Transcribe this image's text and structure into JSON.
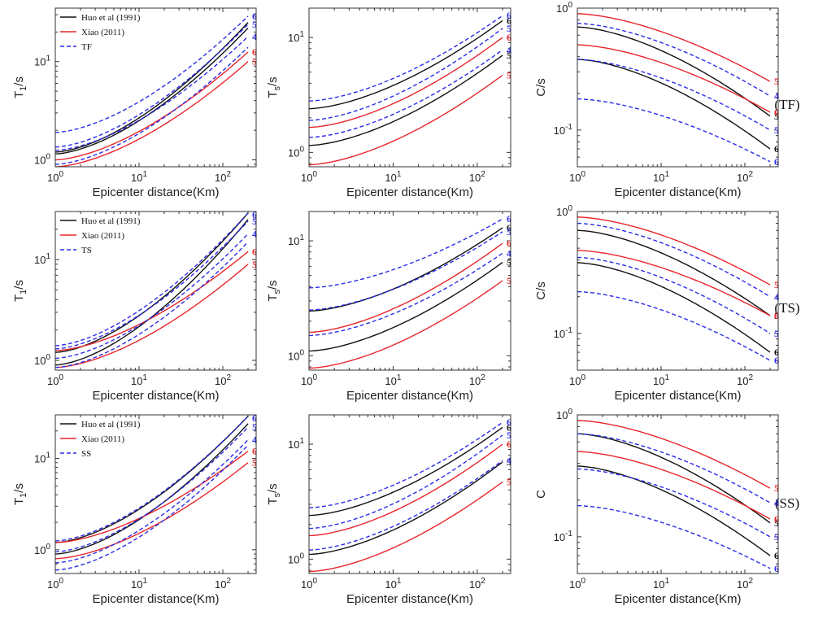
{
  "colors": {
    "black": "#111111",
    "red": "#e8262b",
    "blue": "#2b2bea"
  },
  "row_labels": [
    "(TF)",
    "(TS)",
    "(SS)"
  ],
  "chart_data": [
    {
      "type": "line",
      "row": 0,
      "col": 0,
      "xlabel": "Epicenter distance(Km)",
      "ylabel": "T",
      "ylabel_sub": "1",
      "ylabel_suffix": "/s",
      "xlim": [
        1,
        250
      ],
      "ylim": [
        0.85,
        35
      ],
      "xticks": [
        {
          "v": 1,
          "e": "0"
        },
        {
          "v": 10,
          "e": "1"
        },
        {
          "v": 100,
          "e": "2"
        }
      ],
      "yticks": [
        {
          "v": 1,
          "e": "0"
        },
        {
          "v": 10,
          "e": "1"
        }
      ],
      "legend": [
        "Huo et al (1991)",
        "Xiao (2011)",
        "TF"
      ],
      "series": [
        {
          "style": "black",
          "y0": 1.2,
          "y200": 25,
          "label": ""
        },
        {
          "style": "black",
          "y0": 1.15,
          "y200": 22,
          "label": ""
        },
        {
          "style": "red",
          "y0": 1.0,
          "y200": 12.5,
          "label": "6"
        },
        {
          "style": "red",
          "y0": 0.85,
          "y200": 10,
          "label": "5"
        },
        {
          "style": "blue",
          "y0": 1.9,
          "y200": 29,
          "label": "6"
        },
        {
          "style": "blue",
          "y0": 1.35,
          "y200": 24,
          "label": "5"
        },
        {
          "style": "blue",
          "y0": 1.25,
          "y200": 18,
          "label": "4"
        },
        {
          "style": "blue",
          "y0": 0.9,
          "y200": 14,
          "label": ""
        }
      ]
    },
    {
      "type": "line",
      "row": 0,
      "col": 1,
      "xlabel": "Epicenter distance(Km)",
      "ylabel": "T",
      "ylabel_sub": "s",
      "ylabel_suffix": "/s",
      "xlim": [
        1,
        250
      ],
      "ylim": [
        0.75,
        18
      ],
      "xticks": [
        {
          "v": 1,
          "e": "0"
        },
        {
          "v": 10,
          "e": "1"
        },
        {
          "v": 100,
          "e": "2"
        }
      ],
      "yticks": [
        {
          "v": 1,
          "e": "0"
        },
        {
          "v": 10,
          "e": "1"
        }
      ],
      "legend": [],
      "series": [
        {
          "style": "black",
          "y0": 2.4,
          "y200": 14,
          "label": "6"
        },
        {
          "style": "black",
          "y0": 1.15,
          "y200": 7,
          "label": "5"
        },
        {
          "style": "red",
          "y0": 1.65,
          "y200": 10,
          "label": "6"
        },
        {
          "style": "red",
          "y0": 0.78,
          "y200": 4.7,
          "label": "5"
        },
        {
          "style": "blue",
          "y0": 2.8,
          "y200": 15.5,
          "label": "6"
        },
        {
          "style": "blue",
          "y0": 1.9,
          "y200": 12,
          "label": "5"
        },
        {
          "style": "blue",
          "y0": 1.35,
          "y200": 7.8,
          "label": "4"
        }
      ]
    },
    {
      "type": "line",
      "row": 0,
      "col": 2,
      "xlabel": "Epicenter distance(Km)",
      "ylabel": "C/s",
      "ylabel_sub": "",
      "ylabel_suffix": "",
      "xlim": [
        1,
        250
      ],
      "ylim": [
        0.05,
        1
      ],
      "xticks": [
        {
          "v": 1,
          "e": "0"
        },
        {
          "v": 10,
          "e": "1"
        },
        {
          "v": 100,
          "e": "2"
        }
      ],
      "yticks": [
        {
          "v": 0.1,
          "e": "-1"
        },
        {
          "v": 1,
          "e": "0"
        }
      ],
      "legend": [],
      "series": [
        {
          "style": "black",
          "y0": 0.7,
          "y200": 0.13,
          "label": "5"
        },
        {
          "style": "black",
          "y0": 0.38,
          "y200": 0.07,
          "label": "6"
        },
        {
          "style": "red",
          "y0": 0.9,
          "y200": 0.25,
          "label": "5"
        },
        {
          "style": "red",
          "y0": 0.5,
          "y200": 0.14,
          "label": "6"
        },
        {
          "style": "blue",
          "y0": 0.75,
          "y200": 0.19,
          "label": "4"
        },
        {
          "style": "blue",
          "y0": 0.38,
          "y200": 0.1,
          "label": "5"
        },
        {
          "style": "blue",
          "y0": 0.18,
          "y200": 0.055,
          "label": "6"
        }
      ]
    },
    {
      "type": "line",
      "row": 1,
      "col": 0,
      "xlabel": "Epicenter distance(Km)",
      "ylabel": "T",
      "ylabel_sub": "1",
      "ylabel_suffix": "/s",
      "xlim": [
        1,
        250
      ],
      "ylim": [
        0.8,
        30
      ],
      "xticks": [
        {
          "v": 1,
          "e": "0"
        },
        {
          "v": 10,
          "e": "1"
        },
        {
          "v": 100,
          "e": "2"
        }
      ],
      "yticks": [
        {
          "v": 1,
          "e": "0"
        },
        {
          "v": 10,
          "e": "1"
        }
      ],
      "legend": [
        "Huo et al (1991)",
        "Xiao (2011)",
        "TS"
      ],
      "series": [
        {
          "style": "black",
          "y0": 1.2,
          "y200": 29,
          "label": ""
        },
        {
          "style": "black",
          "y0": 0.9,
          "y200": 25,
          "label": ""
        },
        {
          "style": "red",
          "y0": 1.25,
          "y200": 12,
          "label": "6"
        },
        {
          "style": "red",
          "y0": 0.85,
          "y200": 9,
          "label": "5"
        },
        {
          "style": "blue",
          "y0": 1.4,
          "y200": 29,
          "label": "6"
        },
        {
          "style": "blue",
          "y0": 1.3,
          "y200": 24,
          "label": "5"
        },
        {
          "style": "blue",
          "y0": 1.05,
          "y200": 18,
          "label": "4"
        },
        {
          "style": "blue",
          "y0": 0.85,
          "y200": 15,
          "label": ""
        }
      ]
    },
    {
      "type": "line",
      "row": 1,
      "col": 1,
      "xlabel": "Epicenter distance(Km)",
      "ylabel": "T",
      "ylabel_sub": "s",
      "ylabel_suffix": "/s",
      "xlim": [
        1,
        250
      ],
      "ylim": [
        0.75,
        18
      ],
      "xticks": [
        {
          "v": 1,
          "e": "0"
        },
        {
          "v": 10,
          "e": "1"
        },
        {
          "v": 100,
          "e": "2"
        }
      ],
      "yticks": [
        {
          "v": 1,
          "e": "0"
        },
        {
          "v": 10,
          "e": "1"
        }
      ],
      "legend": [],
      "series": [
        {
          "style": "black",
          "y0": 2.45,
          "y200": 13,
          "label": "6"
        },
        {
          "style": "black",
          "y0": 1.1,
          "y200": 6.5,
          "label": "5"
        },
        {
          "style": "red",
          "y0": 1.6,
          "y200": 9.5,
          "label": "6"
        },
        {
          "style": "red",
          "y0": 0.78,
          "y200": 4.5,
          "label": "5"
        },
        {
          "style": "blue",
          "y0": 3.9,
          "y200": 15.5,
          "label": "6"
        },
        {
          "style": "blue",
          "y0": 2.5,
          "y200": 12,
          "label": "5"
        },
        {
          "style": "blue",
          "y0": 1.5,
          "y200": 7.8,
          "label": "4"
        }
      ]
    },
    {
      "type": "line",
      "row": 1,
      "col": 2,
      "xlabel": "Epicenter distance(Km)",
      "ylabel": "C/s",
      "ylabel_sub": "",
      "ylabel_suffix": "",
      "xlim": [
        1,
        250
      ],
      "ylim": [
        0.05,
        1
      ],
      "xticks": [
        {
          "v": 1,
          "e": "0"
        },
        {
          "v": 10,
          "e": "1"
        },
        {
          "v": 100,
          "e": "2"
        }
      ],
      "yticks": [
        {
          "v": 0.1,
          "e": "-1"
        },
        {
          "v": 1,
          "e": "0"
        }
      ],
      "legend": [],
      "series": [
        {
          "style": "black",
          "y0": 0.7,
          "y200": 0.14,
          "label": "5"
        },
        {
          "style": "black",
          "y0": 0.38,
          "y200": 0.07,
          "label": "6"
        },
        {
          "style": "red",
          "y0": 0.9,
          "y200": 0.25,
          "label": "5"
        },
        {
          "style": "red",
          "y0": 0.48,
          "y200": 0.14,
          "label": "6"
        },
        {
          "style": "blue",
          "y0": 0.8,
          "y200": 0.2,
          "label": "4"
        },
        {
          "style": "blue",
          "y0": 0.42,
          "y200": 0.1,
          "label": "5"
        },
        {
          "style": "blue",
          "y0": 0.22,
          "y200": 0.06,
          "label": "6"
        }
      ]
    },
    {
      "type": "line",
      "row": 2,
      "col": 0,
      "xlabel": "Epicenter distance(Km)",
      "ylabel": "T",
      "ylabel_sub": "1",
      "ylabel_suffix": "/s",
      "xlim": [
        1,
        250
      ],
      "ylim": [
        0.55,
        30
      ],
      "xticks": [
        {
          "v": 1,
          "e": "0"
        },
        {
          "v": 10,
          "e": "1"
        },
        {
          "v": 100,
          "e": "2"
        }
      ],
      "yticks": [
        {
          "v": 1,
          "e": "0"
        },
        {
          "v": 10,
          "e": "1"
        }
      ],
      "legend": [
        "Huo et al (1991)",
        "Xiao (2011)",
        "SS"
      ],
      "series": [
        {
          "style": "black",
          "y0": 1.2,
          "y200": 29,
          "label": ""
        },
        {
          "style": "black",
          "y0": 0.9,
          "y200": 24,
          "label": ""
        },
        {
          "style": "red",
          "y0": 1.2,
          "y200": 12,
          "label": "6"
        },
        {
          "style": "red",
          "y0": 0.8,
          "y200": 9,
          "label": "5"
        },
        {
          "style": "blue",
          "y0": 1.25,
          "y200": 29,
          "label": "6"
        },
        {
          "style": "blue",
          "y0": 0.95,
          "y200": 22,
          "label": "5"
        },
        {
          "style": "blue",
          "y0": 0.72,
          "y200": 16,
          "label": "4"
        },
        {
          "style": "blue",
          "y0": 0.6,
          "y200": 14,
          "label": ""
        }
      ]
    },
    {
      "type": "line",
      "row": 2,
      "col": 1,
      "xlabel": "Epicenter distance(Km)",
      "ylabel": "T",
      "ylabel_sub": "s",
      "ylabel_suffix": "/s",
      "xlim": [
        1,
        250
      ],
      "ylim": [
        0.75,
        18
      ],
      "xticks": [
        {
          "v": 1,
          "e": "0"
        },
        {
          "v": 10,
          "e": "1"
        },
        {
          "v": 100,
          "e": "2"
        }
      ],
      "yticks": [
        {
          "v": 1,
          "e": "0"
        },
        {
          "v": 10,
          "e": "1"
        }
      ],
      "legend": [],
      "series": [
        {
          "style": "black",
          "y0": 2.4,
          "y200": 14,
          "label": "6"
        },
        {
          "style": "black",
          "y0": 1.1,
          "y200": 7,
          "label": "5"
        },
        {
          "style": "red",
          "y0": 1.6,
          "y200": 10,
          "label": "6"
        },
        {
          "style": "red",
          "y0": 0.78,
          "y200": 4.7,
          "label": "5"
        },
        {
          "style": "blue",
          "y0": 2.8,
          "y200": 15.5,
          "label": "6"
        },
        {
          "style": "blue",
          "y0": 1.85,
          "y200": 12,
          "label": "5"
        },
        {
          "style": "blue",
          "y0": 1.2,
          "y200": 7.2,
          "label": "4"
        }
      ]
    },
    {
      "type": "line",
      "row": 2,
      "col": 2,
      "xlabel": "Epicenter distance(Km)",
      "ylabel": "C",
      "ylabel_sub": "",
      "ylabel_suffix": "",
      "xlim": [
        1,
        250
      ],
      "ylim": [
        0.05,
        1
      ],
      "xticks": [
        {
          "v": 1,
          "e": "0"
        },
        {
          "v": 10,
          "e": "1"
        },
        {
          "v": 100,
          "e": "2"
        }
      ],
      "yticks": [
        {
          "v": 0.1,
          "e": "-1"
        },
        {
          "v": 1,
          "e": "0"
        }
      ],
      "legend": [],
      "series": [
        {
          "style": "black",
          "y0": 0.7,
          "y200": 0.13,
          "label": "5"
        },
        {
          "style": "black",
          "y0": 0.38,
          "y200": 0.07,
          "label": "6"
        },
        {
          "style": "red",
          "y0": 0.9,
          "y200": 0.25,
          "label": "5"
        },
        {
          "style": "red",
          "y0": 0.5,
          "y200": 0.14,
          "label": "6"
        },
        {
          "style": "blue",
          "y0": 0.7,
          "y200": 0.19,
          "label": "4"
        },
        {
          "style": "blue",
          "y0": 0.36,
          "y200": 0.1,
          "label": "5"
        },
        {
          "style": "blue",
          "y0": 0.18,
          "y200": 0.055,
          "label": "6"
        }
      ]
    }
  ]
}
